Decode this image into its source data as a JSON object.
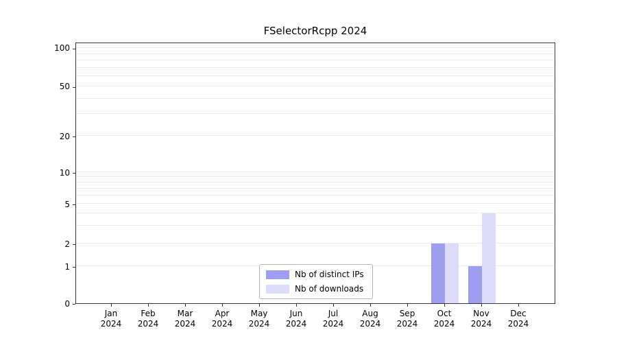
{
  "chart_data": {
    "type": "bar",
    "title": "FSelectorRcpp 2024",
    "categories": [
      "Jan",
      "Feb",
      "Mar",
      "Apr",
      "May",
      "Jun",
      "Jul",
      "Aug",
      "Sep",
      "Oct",
      "Nov",
      "Dec"
    ],
    "year_label": "2024",
    "series": [
      {
        "name": "Nb of distinct IPs",
        "color": "#9e9ef0",
        "values": [
          0,
          0,
          0,
          0,
          0,
          0,
          0,
          0,
          0,
          2,
          1,
          0
        ]
      },
      {
        "name": "Nb of downloads",
        "color": "#dcdcfa",
        "values": [
          0,
          0,
          0,
          0,
          0,
          0,
          0,
          0,
          0,
          2,
          4,
          0
        ]
      }
    ],
    "y_ticks": [
      0,
      1,
      2,
      5,
      10,
      20,
      50,
      100
    ],
    "y_minor_gridlines": [
      1,
      2,
      3,
      4,
      5,
      6,
      7,
      8,
      9,
      10,
      20,
      30,
      40,
      50,
      60,
      70,
      80,
      90,
      100
    ],
    "ylim": [
      0,
      100
    ],
    "scale": "pseudo-log",
    "grid": true,
    "legend_position": "bottom-center-inside"
  }
}
